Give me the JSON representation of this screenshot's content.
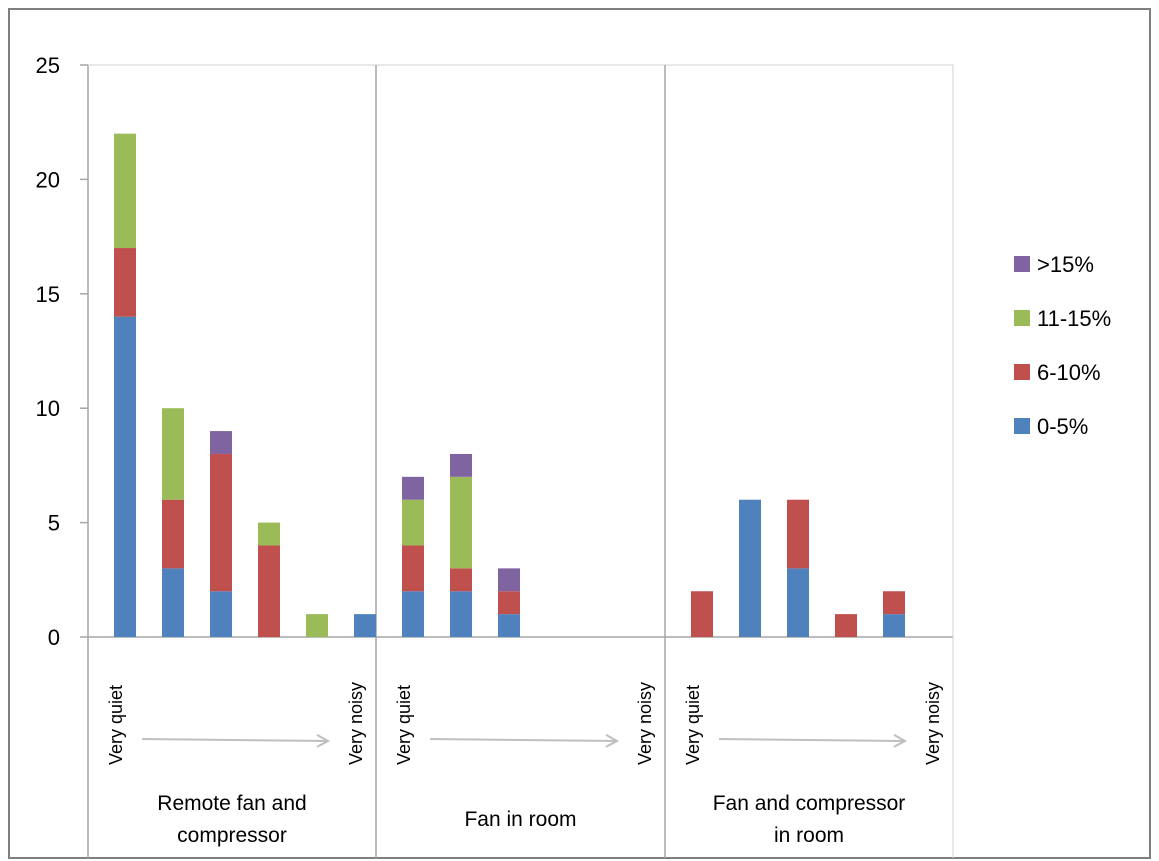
{
  "chart_data": {
    "type": "bar",
    "stacked": true,
    "ylim": [
      0,
      25
    ],
    "yticks": [
      0,
      5,
      10,
      15,
      20,
      25
    ],
    "grid": false,
    "legend_placement": "right",
    "groups": [
      {
        "label_lines": [
          "Remote fan and",
          "compressor"
        ],
        "start_label": "Very quiet",
        "end_label": "Very noisy",
        "bars": [
          [
            14,
            3,
            5,
            0
          ],
          [
            3,
            3,
            4,
            0
          ],
          [
            2,
            6,
            0,
            1
          ],
          [
            0,
            4,
            1,
            0
          ],
          [
            0,
            0,
            1,
            0
          ],
          [
            1,
            0,
            0,
            0
          ]
        ]
      },
      {
        "label_lines": [
          "Fan in room"
        ],
        "start_label": "Very quiet",
        "end_label": "Very noisy",
        "bars": [
          [
            2,
            2,
            2,
            1
          ],
          [
            2,
            1,
            4,
            1
          ],
          [
            1,
            1,
            0,
            1
          ],
          [
            0,
            0,
            0,
            0
          ],
          [
            0,
            0,
            0,
            0
          ]
        ]
      },
      {
        "label_lines": [
          "Fan and compressor",
          "in room"
        ],
        "start_label": "Very quiet",
        "end_label": "Very noisy",
        "bars": [
          [
            0,
            2,
            0,
            0
          ],
          [
            6,
            0,
            0,
            0
          ],
          [
            3,
            3,
            0,
            0
          ],
          [
            0,
            1,
            0,
            0
          ],
          [
            1,
            1,
            0,
            0
          ]
        ]
      }
    ],
    "series": [
      {
        "name": "0-5%",
        "color": "#4F81BD"
      },
      {
        "name": "6-10%",
        "color": "#C0504D"
      },
      {
        "name": "11-15%",
        "color": "#9BBB59"
      },
      {
        "name": ">15%",
        "color": "#8064A2"
      }
    ],
    "legend_order": [
      3,
      2,
      1,
      0
    ]
  }
}
